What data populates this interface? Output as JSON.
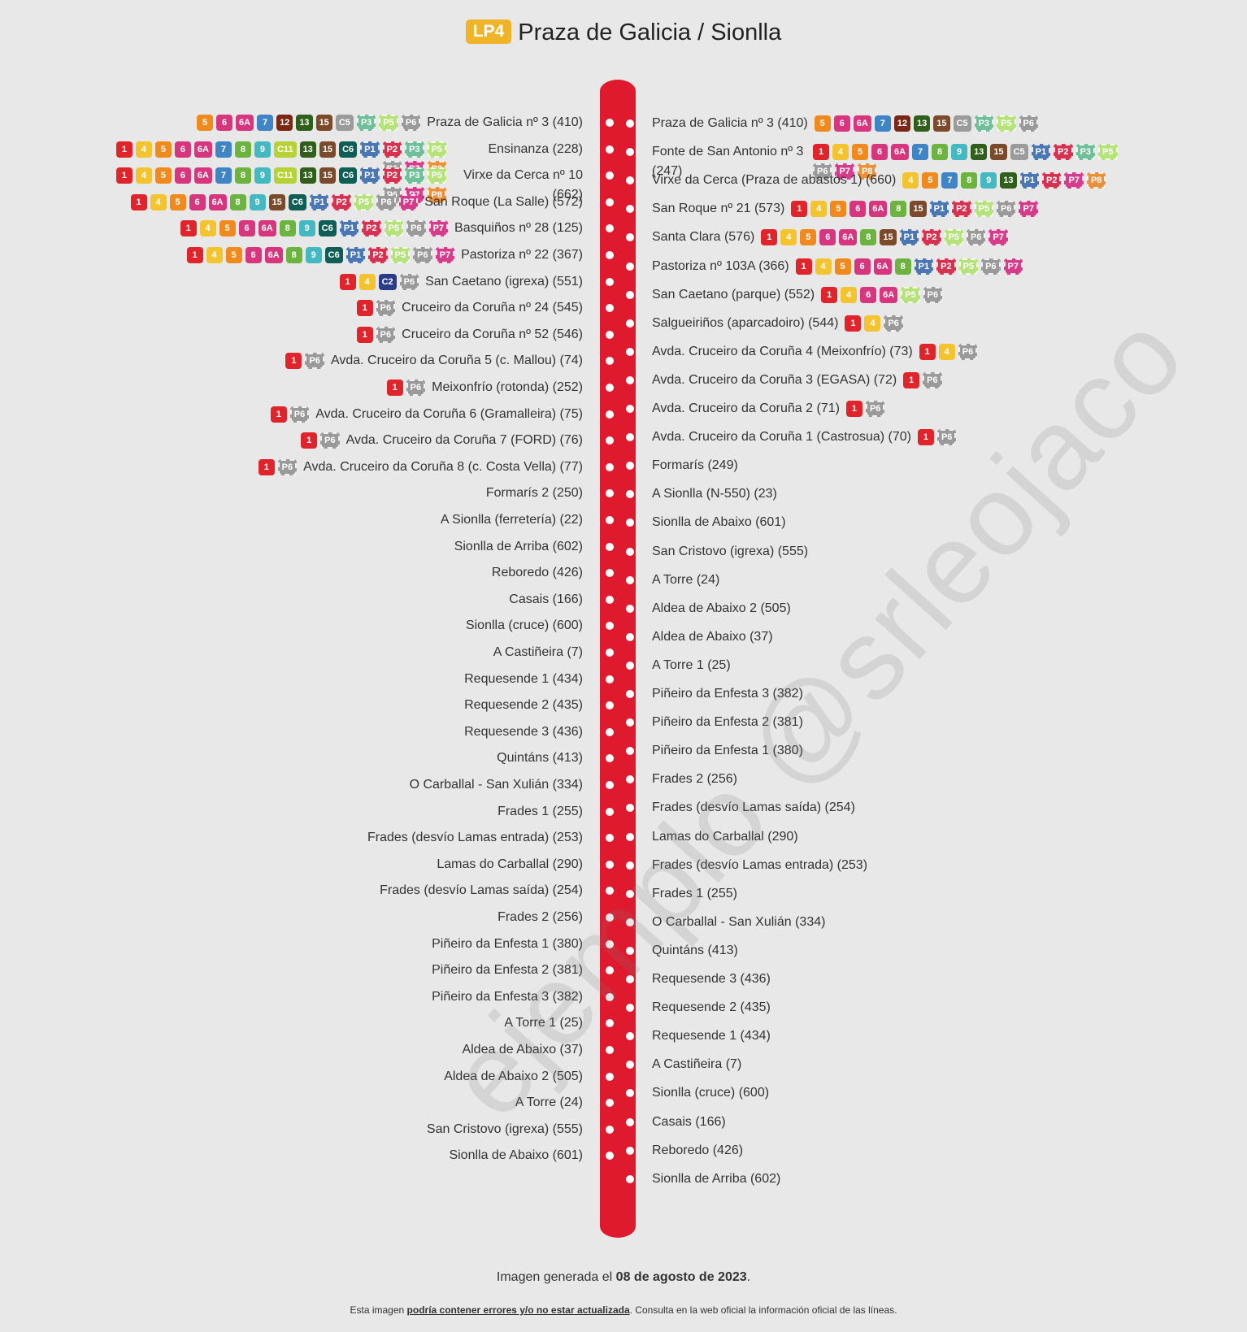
{
  "header": {
    "line_code": "LP4",
    "title": "Praza de Galicia / Sionlla"
  },
  "colors": {
    "route": "#e01a2e",
    "header_badge": "#f0b429",
    "lines": {
      "1": "#e0242b",
      "4": "#f4c430",
      "5": "#f08a1c",
      "6": "#d8357f",
      "6A": "#d8357f",
      "7": "#3f84c5",
      "8": "#6db33f",
      "9": "#44b9c1",
      "12": "#7a2716",
      "13": "#2f5f1a",
      "15": "#7a4a2a",
      "C2": "#283c8a",
      "C5": "#9b9b9b",
      "C6": "#0f5e55",
      "C11": "#b5d335",
      "P1": "#4a77b4",
      "P2": "#d63150",
      "P3": "#6fbf9a",
      "P5": "#b5e27a",
      "P6": "#9a9a9a",
      "P7": "#d63c8a",
      "P8": "#ec8f3a"
    }
  },
  "left_stops": [
    {
      "name": "Praza de Galicia nº 3 (410)",
      "lines": [
        "5",
        "6",
        "6A",
        "7",
        "12",
        "13",
        "15",
        "C5",
        "P3",
        "P5",
        "P6"
      ]
    },
    {
      "name": "Ensinanza (228)",
      "lines": [
        "1",
        "4",
        "5",
        "6",
        "6A",
        "7",
        "8",
        "9",
        "C11",
        "13",
        "15",
        "C6",
        "P1",
        "P2",
        "P3",
        "P5",
        "P6",
        "P7",
        "P8"
      ]
    },
    {
      "name": "Virxe da Cerca nº 10 (662)",
      "lines": [
        "1",
        "4",
        "5",
        "6",
        "6A",
        "7",
        "8",
        "9",
        "C11",
        "13",
        "15",
        "C6",
        "P1",
        "P2",
        "P3",
        "P5",
        "P6",
        "P7",
        "P8"
      ]
    },
    {
      "name": "San Roque (La Salle) (572)",
      "lines": [
        "1",
        "4",
        "5",
        "6",
        "6A",
        "8",
        "9",
        "15",
        "C6",
        "P1",
        "P2",
        "P5",
        "P6",
        "P7"
      ]
    },
    {
      "name": "Basquiños nº 28 (125)",
      "lines": [
        "1",
        "4",
        "5",
        "6",
        "6A",
        "8",
        "9",
        "C6",
        "P1",
        "P2",
        "P5",
        "P6",
        "P7"
      ]
    },
    {
      "name": "Pastoriza nº 22 (367)",
      "lines": [
        "1",
        "4",
        "5",
        "6",
        "6A",
        "8",
        "9",
        "C6",
        "P1",
        "P2",
        "P5",
        "P6",
        "P7"
      ]
    },
    {
      "name": "San Caetano (igrexa) (551)",
      "lines": [
        "1",
        "4",
        "C2",
        "P6"
      ]
    },
    {
      "name": "Cruceiro da Coruña nº 24 (545)",
      "lines": [
        "1",
        "P6"
      ]
    },
    {
      "name": "Cruceiro da Coruña nº 52 (546)",
      "lines": [
        "1",
        "P6"
      ]
    },
    {
      "name": "Avda. Cruceiro da Coruña 5 (c. Mallou) (74)",
      "lines": [
        "1",
        "P6"
      ]
    },
    {
      "name": "Meixonfrío (rotonda) (252)",
      "lines": [
        "1",
        "P6"
      ]
    },
    {
      "name": "Avda. Cruceiro da Coruña 6 (Gramalleira) (75)",
      "lines": [
        "1",
        "P6"
      ]
    },
    {
      "name": "Avda. Cruceiro da Coruña 7 (FORD) (76)",
      "lines": [
        "1",
        "P6"
      ]
    },
    {
      "name": "Avda. Cruceiro da Coruña 8 (c. Costa Vella) (77)",
      "lines": [
        "1",
        "P6"
      ]
    },
    {
      "name": "Formarís 2 (250)",
      "lines": []
    },
    {
      "name": "A Sionlla (ferretería) (22)",
      "lines": []
    },
    {
      "name": "Sionlla de Arriba (602)",
      "lines": []
    },
    {
      "name": "Reboredo (426)",
      "lines": []
    },
    {
      "name": "Casais (166)",
      "lines": []
    },
    {
      "name": "Sionlla (cruce) (600)",
      "lines": []
    },
    {
      "name": "A Castiñeira (7)",
      "lines": []
    },
    {
      "name": "Requesende 1 (434)",
      "lines": []
    },
    {
      "name": "Requesende 2 (435)",
      "lines": []
    },
    {
      "name": "Requesende 3 (436)",
      "lines": []
    },
    {
      "name": "Quintáns (413)",
      "lines": []
    },
    {
      "name": "O Carballal - San Xulián (334)",
      "lines": []
    },
    {
      "name": "Frades 1 (255)",
      "lines": []
    },
    {
      "name": "Frades (desvío Lamas entrada) (253)",
      "lines": []
    },
    {
      "name": "Lamas do Carballal (290)",
      "lines": []
    },
    {
      "name": "Frades (desvío Lamas saída) (254)",
      "lines": []
    },
    {
      "name": "Frades 2 (256)",
      "lines": []
    },
    {
      "name": "Piñeiro da Enfesta 1 (380)",
      "lines": []
    },
    {
      "name": "Piñeiro da Enfesta 2 (381)",
      "lines": []
    },
    {
      "name": "Piñeiro da Enfesta 3 (382)",
      "lines": []
    },
    {
      "name": "A Torre 1 (25)",
      "lines": []
    },
    {
      "name": "Aldea de Abaixo (37)",
      "lines": []
    },
    {
      "name": "Aldea de Abaixo 2 (505)",
      "lines": []
    },
    {
      "name": "A Torre (24)",
      "lines": []
    },
    {
      "name": "San Cristovo (igrexa) (555)",
      "lines": []
    },
    {
      "name": "Sionlla de Abaixo (601)",
      "lines": []
    }
  ],
  "right_stops": [
    {
      "name": "Praza de Galicia nº 3 (410)",
      "lines": [
        "5",
        "6",
        "6A",
        "7",
        "12",
        "13",
        "15",
        "C5",
        "P3",
        "P5",
        "P6"
      ]
    },
    {
      "name": "Fonte de San Antonio nº 3 (247)",
      "lines": [
        "1",
        "4",
        "5",
        "6",
        "6A",
        "7",
        "8",
        "9",
        "13",
        "15",
        "C5",
        "P1",
        "P2",
        "P3",
        "P5",
        "P6",
        "P7",
        "P8"
      ]
    },
    {
      "name": "Virxe da Cerca (Praza de abastos 1) (660)",
      "lines": [
        "4",
        "5",
        "7",
        "8",
        "9",
        "13",
        "P1",
        "P2",
        "P7",
        "P8"
      ]
    },
    {
      "name": "San Roque nº 21 (573)",
      "lines": [
        "1",
        "4",
        "5",
        "6",
        "6A",
        "8",
        "15",
        "P1",
        "P2",
        "P5",
        "P6",
        "P7"
      ]
    },
    {
      "name": "Santa Clara (576)",
      "lines": [
        "1",
        "4",
        "5",
        "6",
        "6A",
        "8",
        "15",
        "P1",
        "P2",
        "P5",
        "P6",
        "P7"
      ]
    },
    {
      "name": "Pastoriza nº 103A (366)",
      "lines": [
        "1",
        "4",
        "5",
        "6",
        "6A",
        "8",
        "P1",
        "P2",
        "P5",
        "P6",
        "P7"
      ]
    },
    {
      "name": "San Caetano (parque) (552)",
      "lines": [
        "1",
        "4",
        "6",
        "6A",
        "P5",
        "P6"
      ]
    },
    {
      "name": "Salgueiriños (aparcadoiro) (544)",
      "lines": [
        "1",
        "4",
        "P6"
      ]
    },
    {
      "name": "Avda. Cruceiro da Coruña 4 (Meixonfrío) (73)",
      "lines": [
        "1",
        "4",
        "P6"
      ]
    },
    {
      "name": "Avda. Cruceiro da Coruña 3 (EGASA) (72)",
      "lines": [
        "1",
        "P6"
      ]
    },
    {
      "name": "Avda. Cruceiro da Coruña 2 (71)",
      "lines": [
        "1",
        "P6"
      ]
    },
    {
      "name": "Avda. Cruceiro da Coruña 1 (Castrosua) (70)",
      "lines": [
        "1",
        "P6"
      ]
    },
    {
      "name": "Formarís (249)",
      "lines": []
    },
    {
      "name": "A Sionlla (N-550) (23)",
      "lines": []
    },
    {
      "name": "Sionlla de Abaixo (601)",
      "lines": []
    },
    {
      "name": "San Cristovo (igrexa) (555)",
      "lines": []
    },
    {
      "name": "A Torre (24)",
      "lines": []
    },
    {
      "name": "Aldea de Abaixo 2 (505)",
      "lines": []
    },
    {
      "name": "Aldea de Abaixo (37)",
      "lines": []
    },
    {
      "name": "A Torre 1 (25)",
      "lines": []
    },
    {
      "name": "Piñeiro da Enfesta 3 (382)",
      "lines": []
    },
    {
      "name": "Piñeiro da Enfesta 2 (381)",
      "lines": []
    },
    {
      "name": "Piñeiro da Enfesta 1 (380)",
      "lines": []
    },
    {
      "name": "Frades 2 (256)",
      "lines": []
    },
    {
      "name": "Frades (desvío Lamas saída) (254)",
      "lines": []
    },
    {
      "name": "Lamas do Carballal (290)",
      "lines": []
    },
    {
      "name": "Frades (desvío Lamas entrada) (253)",
      "lines": []
    },
    {
      "name": "Frades 1 (255)",
      "lines": []
    },
    {
      "name": "O Carballal - San Xulián (334)",
      "lines": []
    },
    {
      "name": "Quintáns (413)",
      "lines": []
    },
    {
      "name": "Requesende 3 (436)",
      "lines": []
    },
    {
      "name": "Requesende 2 (435)",
      "lines": []
    },
    {
      "name": "Requesende 1 (434)",
      "lines": []
    },
    {
      "name": "A Castiñeira (7)",
      "lines": []
    },
    {
      "name": "Sionlla (cruce) (600)",
      "lines": []
    },
    {
      "name": "Casais (166)",
      "lines": []
    },
    {
      "name": "Reboredo (426)",
      "lines": []
    },
    {
      "name": "Sionlla de Arriba (602)",
      "lines": []
    }
  ],
  "watermark": "ejemplo @srleojaco",
  "footer": {
    "generated_prefix": "Imagen generada el ",
    "generated_date": "08 de agosto de 2023",
    "generated_suffix": ".",
    "note_prefix": "Esta imagen ",
    "note_emphasis": "podría contener errores y/o no estar actualizada",
    "note_suffix": ". Consulta en la web oficial la información oficial de las líneas."
  }
}
